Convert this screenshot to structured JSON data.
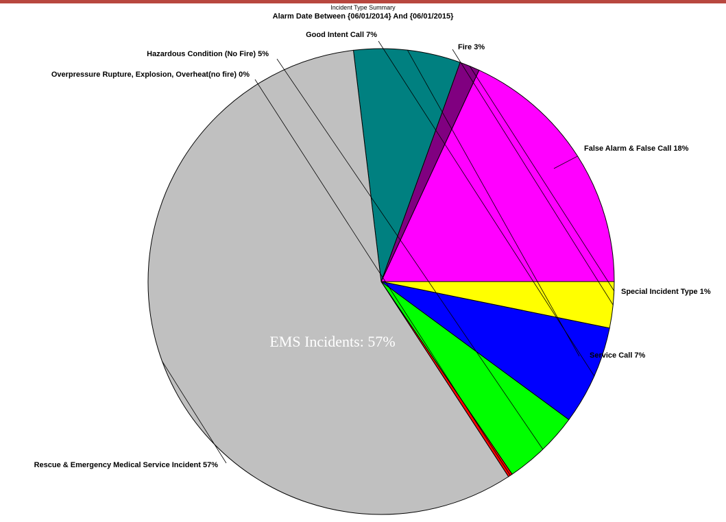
{
  "chart_data": {
    "type": "pie",
    "subtitle": "Incident Type Summary",
    "title": "Alarm Date Between {06/01/2014} And {06/01/2015}",
    "overlay_label": "EMS Incidents:  57%",
    "slices": [
      {
        "label": "False Alarm & False Call 18%",
        "value": 18.1,
        "color": "#ff00ff"
      },
      {
        "label": "Special Incident Type 1%",
        "value": 1.4,
        "color": "#800080"
      },
      {
        "label": "Service Call 7%",
        "value": 7.4,
        "color": "#008080"
      },
      {
        "label": "Rescue & Emergency Medical Service Incident 57%",
        "value": 57.3,
        "color": "#c0c0c0"
      },
      {
        "label": "Overpressure Rupture, Explosion, Overheat(no fire) 0%",
        "value": 0.3,
        "color": "#ff0000"
      },
      {
        "label": "Hazardous Condition (No Fire) 5%",
        "value": 5.4,
        "color": "#00ff00"
      },
      {
        "label": "Good Intent Call 7%",
        "value": 6.9,
        "color": "#0000ff"
      },
      {
        "label": "Fire 3%",
        "value": 3.2,
        "color": "#ffff00"
      }
    ]
  },
  "colors": {
    "top_bar": "#b8473f",
    "outline": "#000000",
    "overlay_text": "#ffffff"
  }
}
